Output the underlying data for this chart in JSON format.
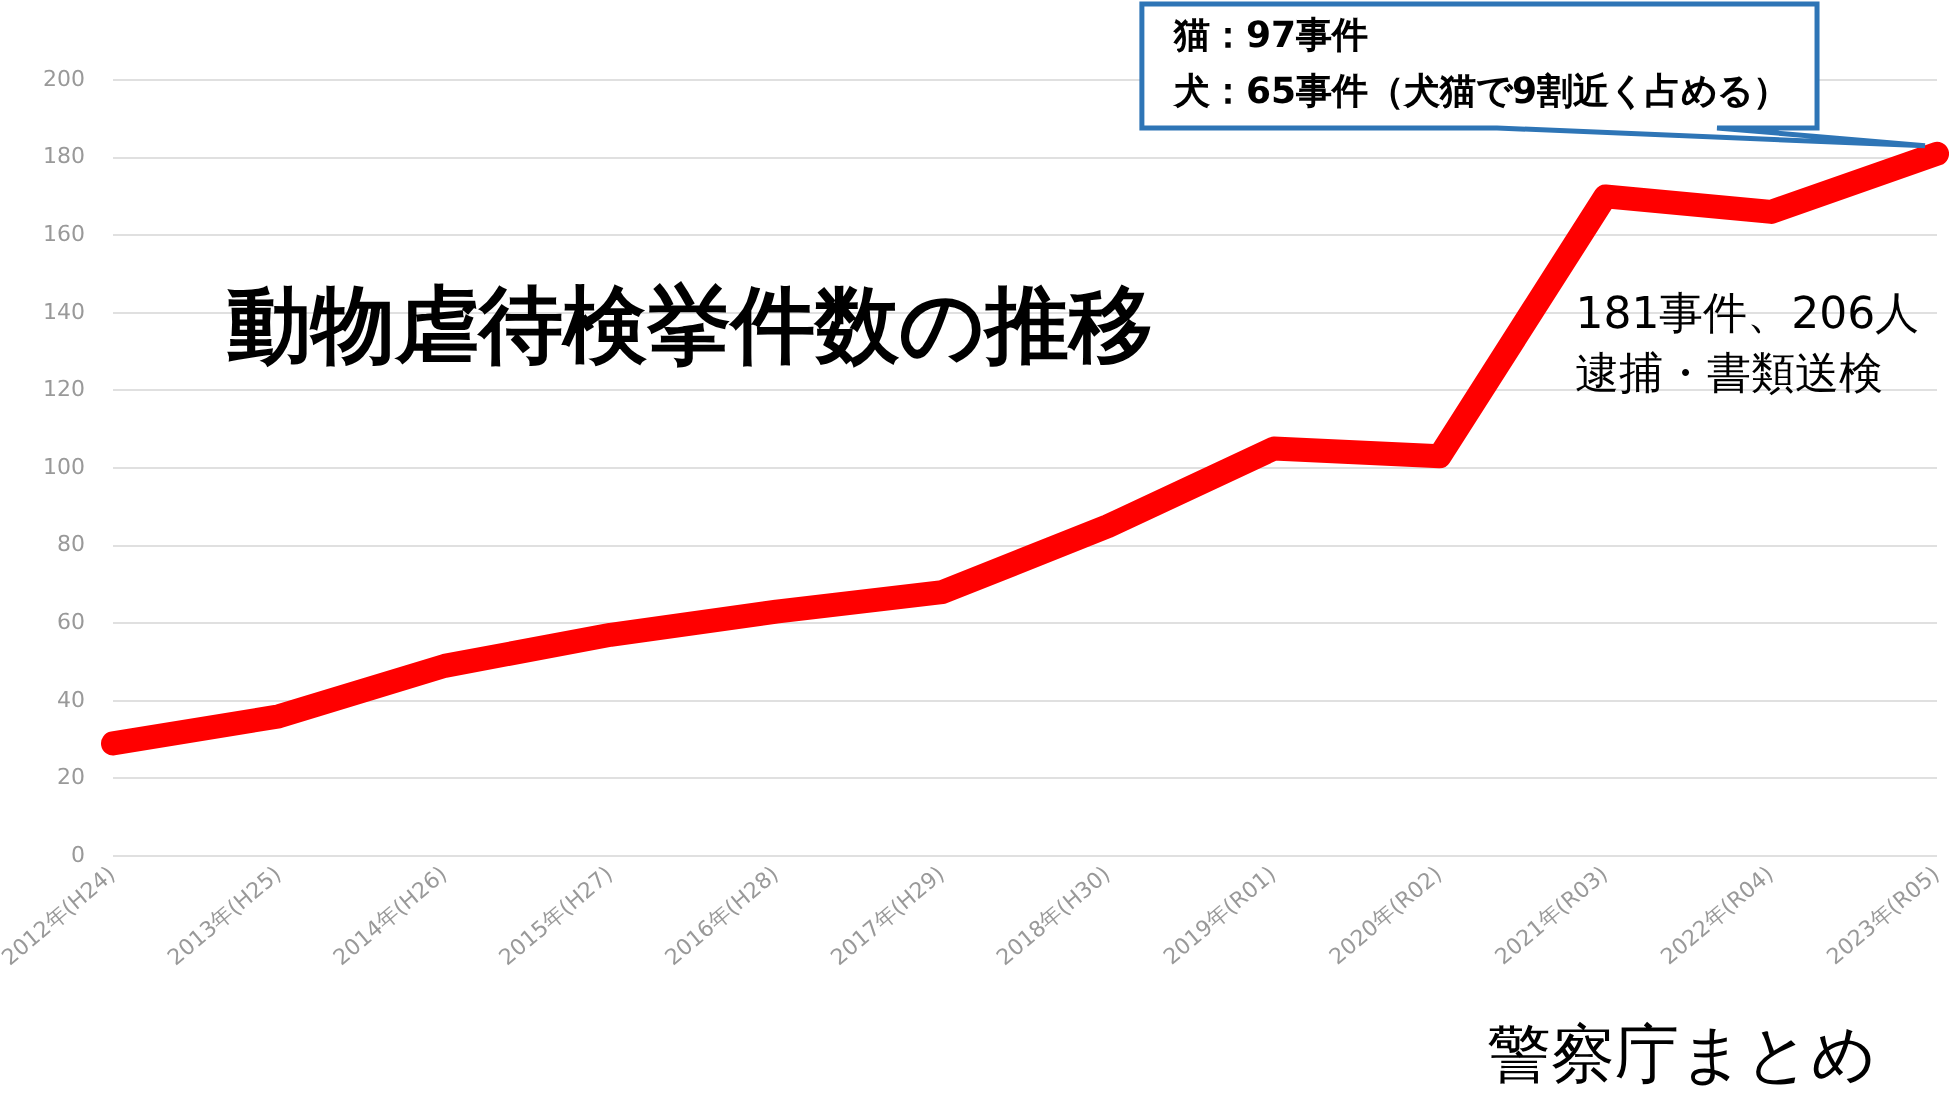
{
  "chart_data": {
    "type": "line",
    "title": "動物虐待検挙件数の推移",
    "categories": [
      "2012年(H24)",
      "2013年(H25)",
      "2014年(H26)",
      "2015年(H27)",
      "2016年(H28)",
      "2017年(H29)",
      "2018年(H30)",
      "2019年(R01)",
      "2020年(R02)",
      "2021年(R03)",
      "2022年(R04)",
      "2023年(R05)"
    ],
    "series": [
      {
        "color": "#ff0000",
        "values": [
          29,
          36,
          49,
          57,
          63,
          68,
          85,
          105,
          103,
          170,
          166,
          181
        ]
      }
    ],
    "ylim": [
      0,
      200
    ],
    "yticks": [
      0,
      20,
      40,
      60,
      80,
      100,
      120,
      140,
      160,
      180,
      200
    ],
    "grid": "y",
    "legend": false,
    "marker": "none",
    "line_style": "solid",
    "annotations": [
      "猫：97事件",
      "犬：65事件（犬猫で9割近く占める）",
      "181事件、206人",
      "逮捕・書類送検",
      "警察庁まとめ"
    ]
  }
}
